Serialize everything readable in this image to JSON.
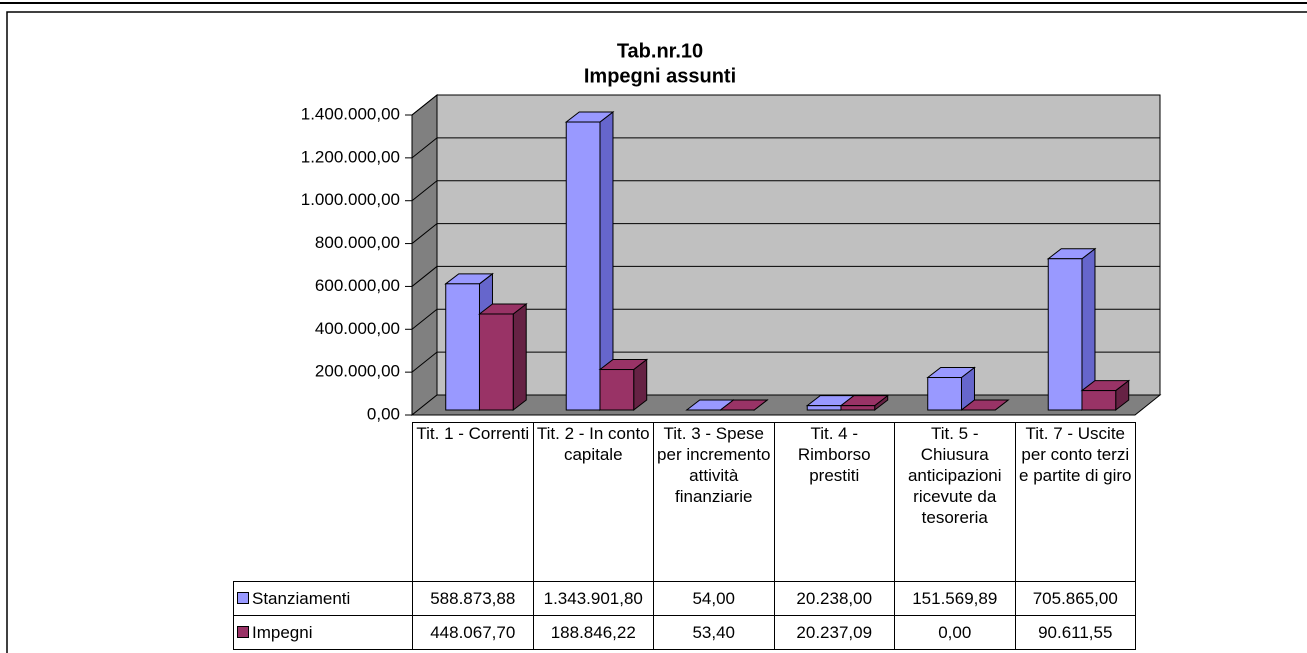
{
  "chart_data": {
    "type": "bar3d",
    "title": "Tab.nr.10",
    "subtitle": "Impegni assunti",
    "categories": [
      "Tit. 1 - Correnti",
      "Tit. 2 - In conto capitale",
      "Tit. 3 - Spese per incremento attività finanziarie",
      "Tit. 4 - Rimborso prestiti",
      "Tit. 5 - Chiusura anticipazioni ricevute da tesoreria",
      "Tit. 7 - Uscite per conto terzi e partite di giro"
    ],
    "series": [
      {
        "name": "Stanziamenti",
        "color": "#9999ff",
        "values": [
          588873.88,
          1343901.8,
          54,
          20238,
          151569.89,
          705865.0
        ],
        "value_labels": [
          "588.873,88",
          "1.343.901,80",
          "54,00",
          "20.238,00",
          "151.569,89",
          "705.865,00"
        ]
      },
      {
        "name": "Impegni",
        "color": "#993366",
        "values": [
          448067.7,
          188846.22,
          53.4,
          20237.09,
          0,
          90611.55
        ],
        "value_labels": [
          "448.067,70",
          "188.846,22",
          "53,40",
          "20.237,09",
          "0,00",
          "90.611,55"
        ]
      }
    ],
    "ylim": [
      0,
      1400000
    ],
    "yticks": [
      {
        "value": 0,
        "label": "0,00"
      },
      {
        "value": 200000,
        "label": "200.000,00"
      },
      {
        "value": 400000,
        "label": "400.000,00"
      },
      {
        "value": 600000,
        "label": "600.000,00"
      },
      {
        "value": 800000,
        "label": "800.000,00"
      },
      {
        "value": 1000000,
        "label": "1.000.000,00"
      },
      {
        "value": 1200000,
        "label": "1.200.000,00"
      },
      {
        "value": 1400000,
        "label": "1.400.000,00"
      }
    ],
    "grid": true
  }
}
